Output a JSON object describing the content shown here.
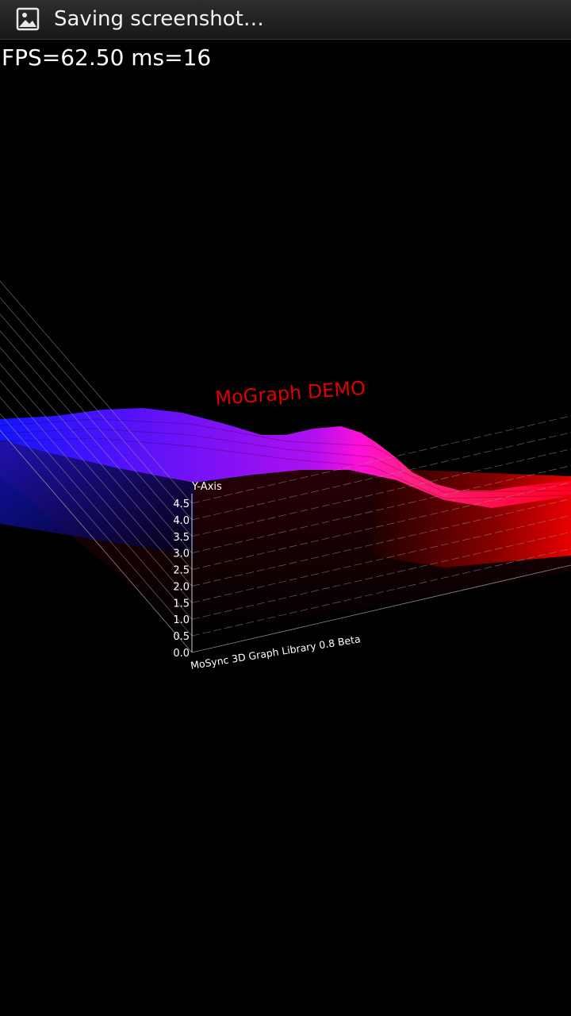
{
  "status_bar": {
    "text": "Saving screenshot…",
    "icon": "image-icon",
    "background": "#1e1e1e"
  },
  "overlay": {
    "fps_text": "FPS=62.50 ms=16"
  },
  "chart_data": {
    "type": "surface3d",
    "title": "MoGraph DEMO",
    "title_color": "#e00000",
    "ylabel": "Y-Axis",
    "caption": "MoSync 3D Graph Library 0.8 Beta",
    "y_ticks": [
      "0.0",
      "0.5",
      "1.0",
      "1.5",
      "2.0",
      "2.5",
      "3.0",
      "3.5",
      "4.0",
      "4.5"
    ],
    "ylim": [
      0,
      4.5
    ],
    "grid": true,
    "color_low": "#0000ff",
    "color_mid": "#ff00ff",
    "color_high": "#ff0000"
  }
}
